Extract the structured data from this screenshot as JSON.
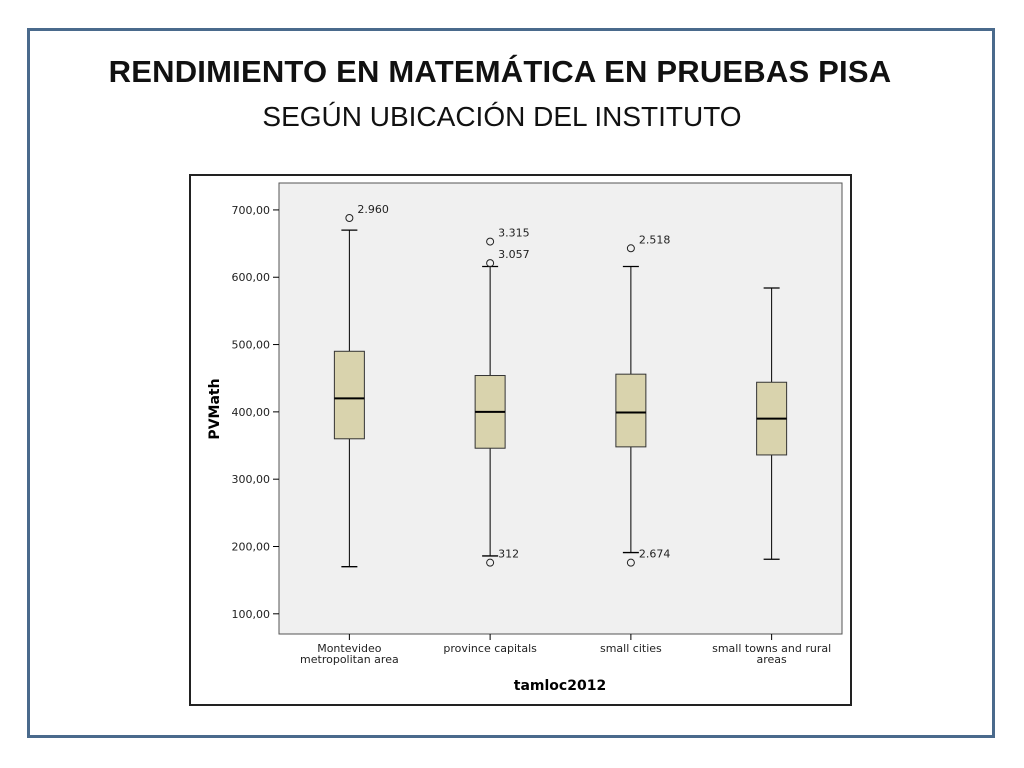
{
  "slide": {
    "title": "RENDIMIENTO EN MATEMÁTICA EN PRUEBAS PISA",
    "subtitle": "SEGÚN UBICACIÓN DEL INSTITUTO"
  },
  "colors": {
    "frame": "#4a6a8c",
    "plot_background": "#f0f0f0",
    "box_fill": "#d9d3ad",
    "line": "#000000"
  },
  "chart_data": {
    "type": "boxplot",
    "xlabel": "tamloc2012",
    "ylabel": "PVMath",
    "ylim": [
      70,
      740
    ],
    "yticks": [
      100,
      200,
      300,
      400,
      500,
      600,
      700
    ],
    "ytick_labels": [
      "100,00",
      "200,00",
      "300,00",
      "400,00",
      "500,00",
      "600,00",
      "700,00"
    ],
    "grid": false,
    "categories": [
      [
        "Montevideo",
        "metropolitan area"
      ],
      [
        "province capitals"
      ],
      [
        "small cities"
      ],
      [
        "small towns and rural",
        "areas"
      ]
    ],
    "boxes": [
      {
        "min": 170,
        "q1": 360,
        "median": 420,
        "q3": 490,
        "max": 670,
        "outliers": [
          {
            "value": 688,
            "label": "2.960"
          }
        ]
      },
      {
        "min": 186,
        "q1": 346,
        "median": 400,
        "q3": 454,
        "max": 616,
        "outliers": [
          {
            "value": 653,
            "label": "3.315"
          },
          {
            "value": 621,
            "label": "3.057"
          },
          {
            "value": 176,
            "label": "312"
          }
        ]
      },
      {
        "min": 191,
        "q1": 348,
        "median": 399,
        "q3": 456,
        "max": 616,
        "outliers": [
          {
            "value": 643,
            "label": "2.518"
          },
          {
            "value": 176,
            "label": "2.674"
          }
        ]
      },
      {
        "min": 181,
        "q1": 336,
        "median": 390,
        "q3": 444,
        "max": 584,
        "outliers": []
      }
    ]
  }
}
